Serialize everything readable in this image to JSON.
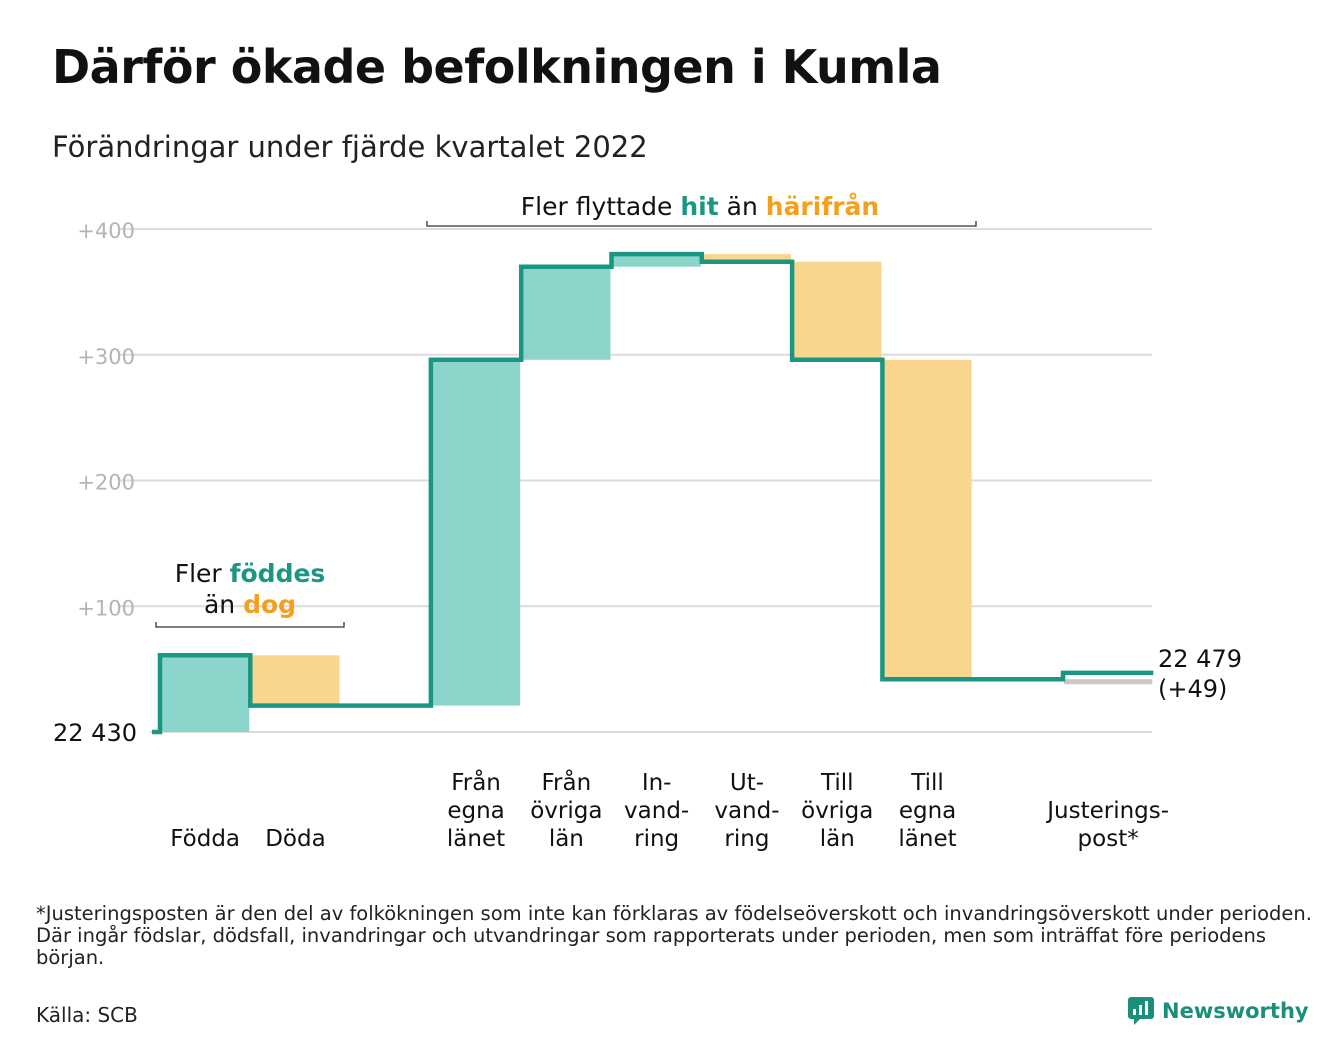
{
  "title": "Därför ökade befolkningen i Kumla",
  "subtitle": "Förändringar under fjärde kvartalet 2022",
  "colors": {
    "teal": "#1a9682",
    "teal_light": "#8cd5cb",
    "orange": "#f3a01e",
    "orange_light": "#fad58e",
    "grid": "#dcdcdc",
    "adjust_gray": "#c8c8c8"
  },
  "annotations": {
    "births": {
      "prefix": "Fler ",
      "highlight1": "föddes",
      "middle": "än ",
      "highlight2": "dog"
    },
    "moves": {
      "prefix": "Fler flyttade ",
      "highlight1": "hit",
      "middle": " än ",
      "highlight2": "härifrån"
    }
  },
  "chart_data": {
    "type": "waterfall",
    "y_ticks": [
      "+100",
      "+200",
      "+300",
      "+400"
    ],
    "y_tick_values": [
      100,
      200,
      300,
      400
    ],
    "ylim": [
      0,
      400
    ],
    "start_label": "22 430",
    "start_value": 22430,
    "end_label_value": "22 479",
    "end_label_change": "(+49)",
    "categories": [
      {
        "label": [
          "Födda"
        ],
        "change": 61,
        "kind": "in"
      },
      {
        "label": [
          "Döda"
        ],
        "change": -40,
        "kind": "out"
      },
      {
        "label": [],
        "change": 0,
        "kind": "gap"
      },
      {
        "label": [
          "Från",
          "egna",
          "länet"
        ],
        "change": 275,
        "kind": "in"
      },
      {
        "label": [
          "Från",
          "övriga",
          "län"
        ],
        "change": 74,
        "kind": "in"
      },
      {
        "label": [
          "In-",
          "vand-",
          "ring"
        ],
        "change": 10,
        "kind": "in"
      },
      {
        "label": [
          "Ut-",
          "vand-",
          "ring"
        ],
        "change": -6,
        "kind": "out"
      },
      {
        "label": [
          "Till",
          "övriga",
          "län"
        ],
        "change": -78,
        "kind": "out"
      },
      {
        "label": [
          "Till",
          "egna",
          "länet"
        ],
        "change": -254,
        "kind": "out"
      },
      {
        "label": [],
        "change": 0,
        "kind": "gap"
      },
      {
        "label": [
          "Justerings-",
          "post*"
        ],
        "change": 5,
        "kind": "adjust"
      }
    ],
    "grid": true
  },
  "footnote": "*Justeringsposten är den del av folkökningen som inte kan förklaras av födelseöverskott och invandringsöverskott under perioden. Där ingår födslar, dödsfall, invandringar och utvandringar som rapporterats under perioden, men som inträffat före periodens början.",
  "source": "Källa: SCB",
  "brand": "Newsworthy"
}
